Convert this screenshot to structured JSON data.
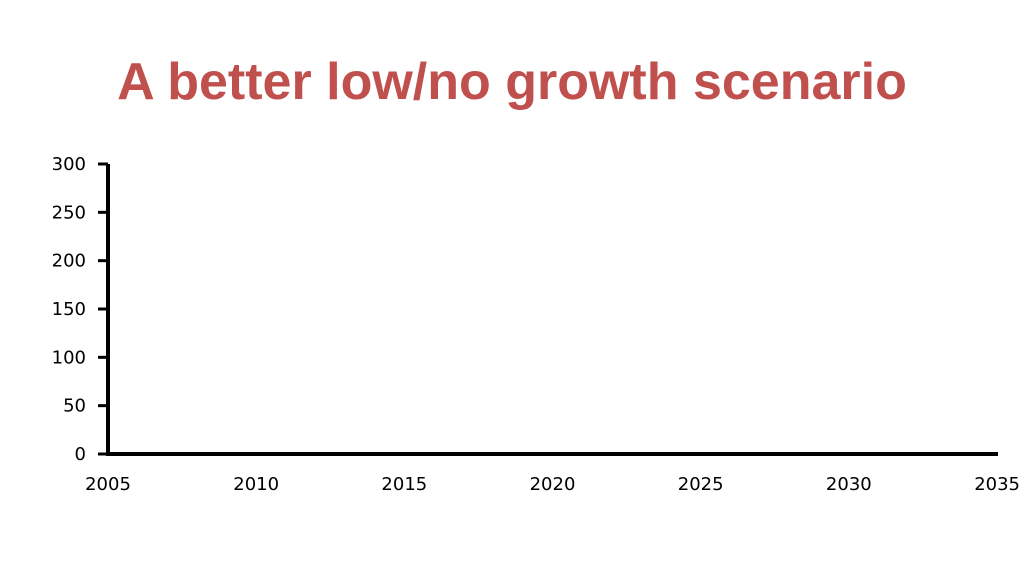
{
  "slide": {
    "title": "A better low/no growth scenario"
  },
  "chart_data": {
    "type": "line",
    "title": "",
    "xlabel": "",
    "ylabel": "",
    "x_ticks": [
      "2005",
      "2010",
      "2015",
      "2020",
      "2025",
      "2030",
      "2035"
    ],
    "y_ticks": [
      "0",
      "50",
      "100",
      "150",
      "200",
      "250",
      "300"
    ],
    "xlim": [
      2005,
      2035
    ],
    "ylim": [
      0,
      300
    ],
    "series": [],
    "grid": false,
    "axis_color": "#000000"
  }
}
